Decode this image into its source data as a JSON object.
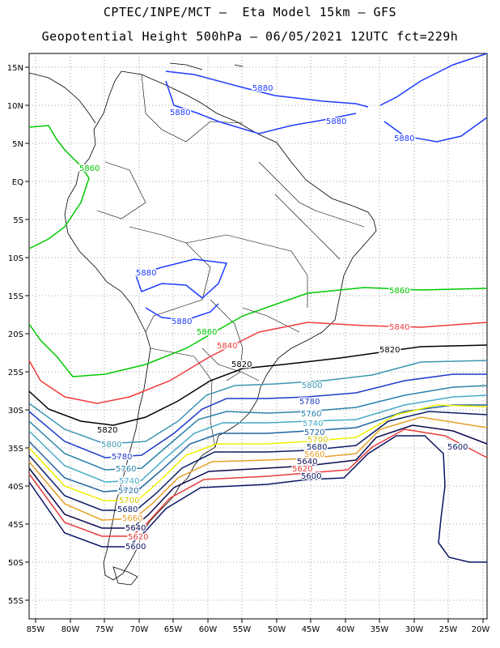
{
  "title": {
    "line1": "CPTEC/INPE/MCT –  Eta Model 15km – GFS",
    "line2": "Geopotential Height 500hPa – 06/05/2021 12UTC fct=229h"
  },
  "axes": {
    "lon_labels": [
      "85W",
      "80W",
      "75W",
      "70W",
      "65W",
      "60W",
      "55W",
      "50W",
      "45W",
      "40W",
      "35W",
      "30W",
      "25W",
      "20W"
    ],
    "lat_labels": [
      "15N",
      "10N",
      "5N",
      "EQ",
      "5S",
      "10S",
      "15S",
      "20S",
      "25S",
      "30S",
      "35S",
      "40S",
      "45S",
      "50S",
      "55S"
    ]
  },
  "colors": {
    "5880": "#1e3cff",
    "5860": "#00c800",
    "5840": "#f03c3c",
    "5820": "#000000",
    "5800": "#3c96b4",
    "5780": "#1e3cc8",
    "5760": "#2882aa",
    "5740": "#46aac8",
    "5720": "#1e64a0",
    "5700": "#f0f000",
    "5680": "#0a1e64",
    "5660": "#e6a028",
    "5640": "#0a0a50",
    "5620": "#e63c3c",
    "5600": "#0a1464"
  },
  "contour_labels": [
    {
      "value": "5880",
      "color": "#1e3cff"
    },
    {
      "value": "5880",
      "color": "#1e3cff"
    },
    {
      "value": "5880",
      "color": "#1e3cff"
    },
    {
      "value": "5880",
      "color": "#1e3cff"
    },
    {
      "value": "5880",
      "color": "#1e3cff"
    },
    {
      "value": "5880",
      "color": "#1e3cff"
    },
    {
      "value": "5860",
      "color": "#00c800"
    },
    {
      "value": "5860",
      "color": "#00c800"
    },
    {
      "value": "5860",
      "color": "#00c800"
    },
    {
      "value": "5840",
      "color": "#f03c3c"
    },
    {
      "value": "5840",
      "color": "#f03c3c"
    },
    {
      "value": "5820",
      "color": "#000000"
    },
    {
      "value": "5820",
      "color": "#000000"
    },
    {
      "value": "5820",
      "color": "#000000"
    },
    {
      "value": "5800",
      "color": "#3c96b4"
    },
    {
      "value": "5800",
      "color": "#3c96b4"
    },
    {
      "value": "5780",
      "color": "#1e3cc8"
    },
    {
      "value": "5780",
      "color": "#1e3cc8"
    },
    {
      "value": "5760",
      "color": "#2882aa"
    },
    {
      "value": "5760",
      "color": "#2882aa"
    },
    {
      "value": "5740",
      "color": "#46aac8"
    },
    {
      "value": "5740",
      "color": "#46aac8"
    },
    {
      "value": "5720",
      "color": "#1e64a0"
    },
    {
      "value": "5720",
      "color": "#1e64a0"
    },
    {
      "value": "5700",
      "color": "#d2c800"
    },
    {
      "value": "5700",
      "color": "#d2c800"
    },
    {
      "value": "5680",
      "color": "#0a1e64"
    },
    {
      "value": "5680",
      "color": "#0a1e64"
    },
    {
      "value": "5660",
      "color": "#e6a028"
    },
    {
      "value": "5660",
      "color": "#e6a028"
    },
    {
      "value": "5640",
      "color": "#0a0a50"
    },
    {
      "value": "5640",
      "color": "#0a0a50"
    },
    {
      "value": "5620",
      "color": "#e63c3c"
    },
    {
      "value": "5620",
      "color": "#e63c3c"
    },
    {
      "value": "5600",
      "color": "#0a1464"
    },
    {
      "value": "5600",
      "color": "#0a1464"
    },
    {
      "value": "5600",
      "color": "#0a1464"
    }
  ]
}
